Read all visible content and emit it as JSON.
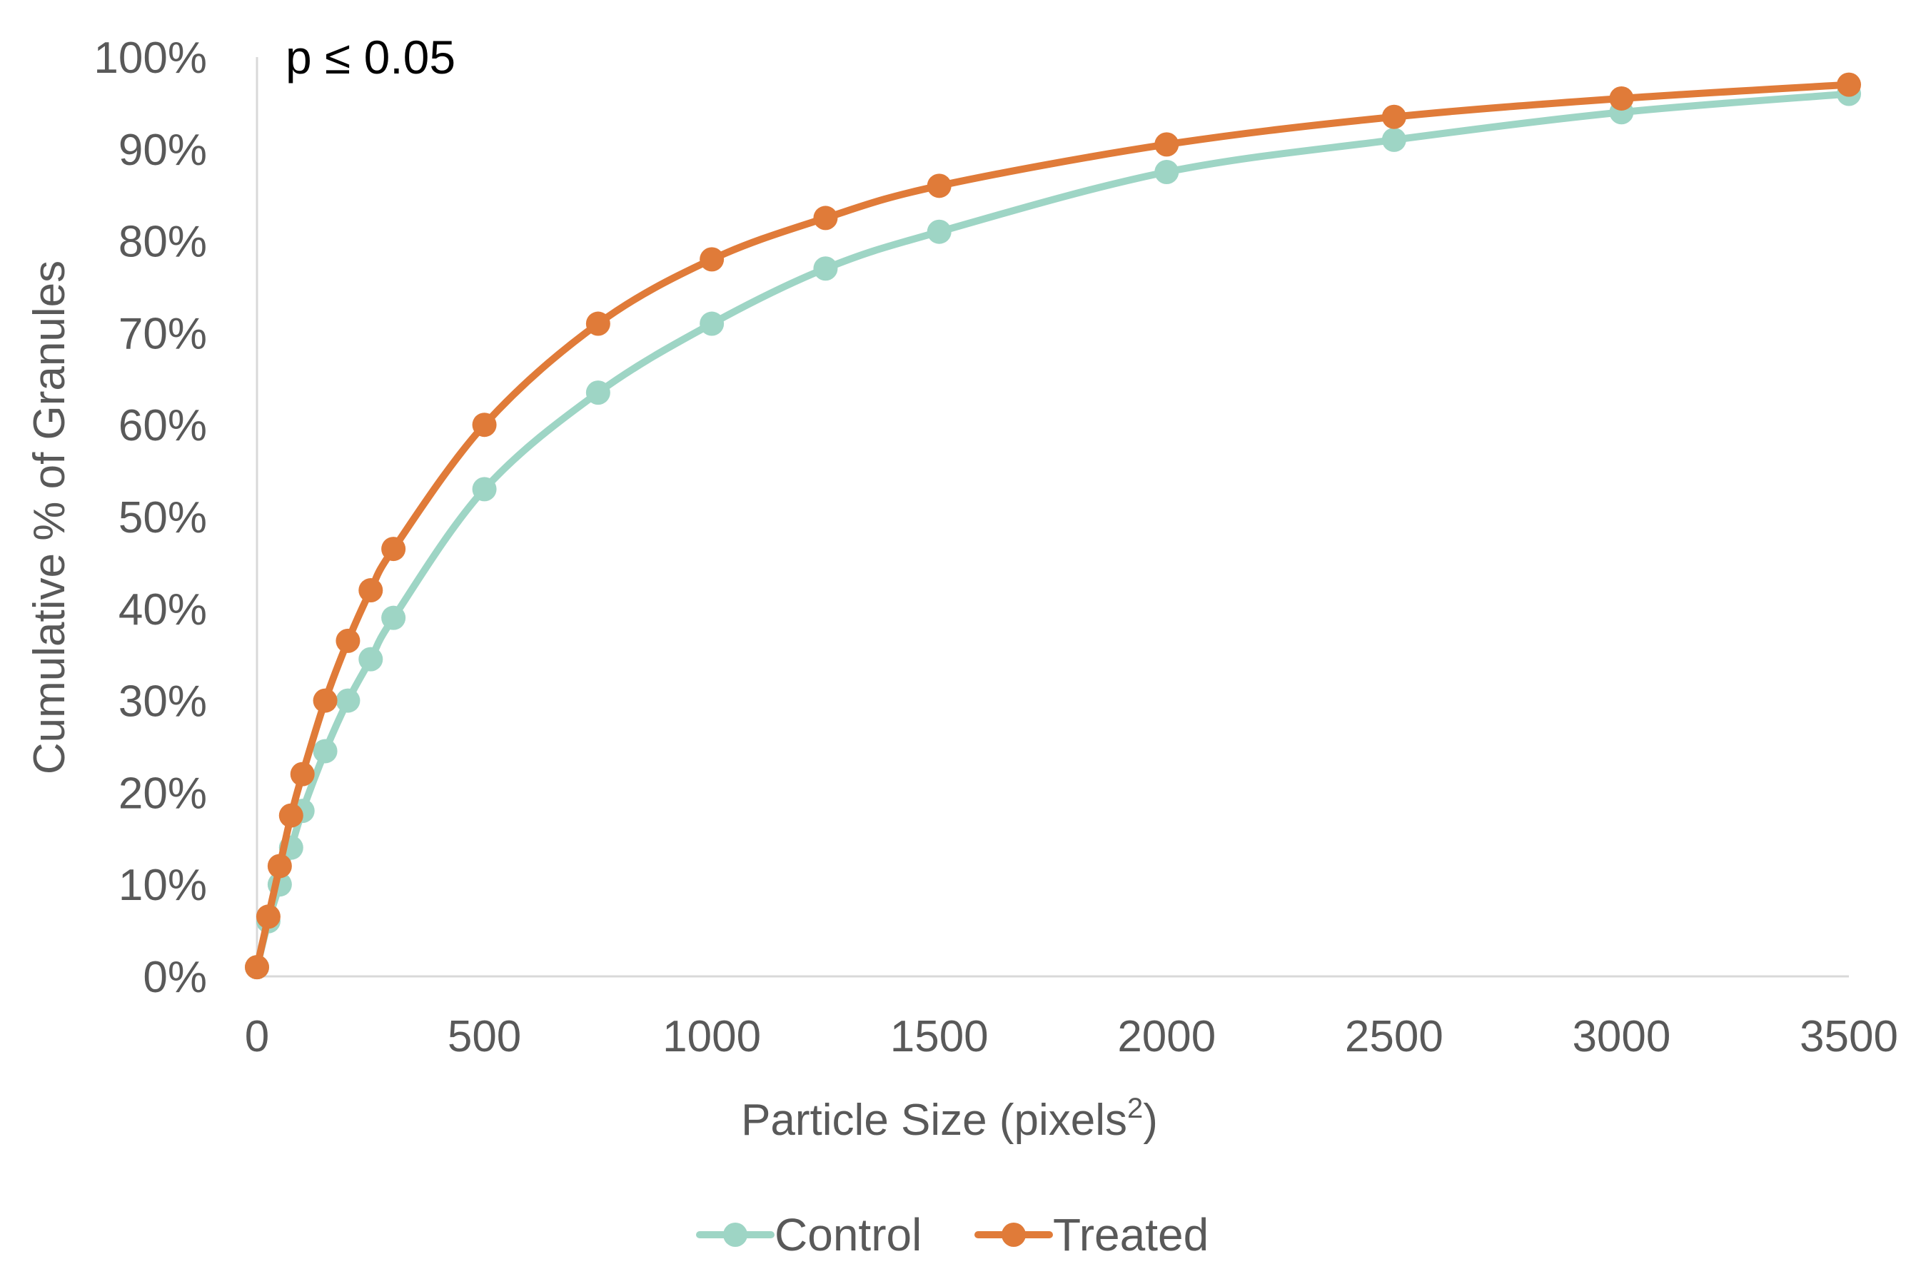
{
  "chart_data": {
    "type": "line",
    "annotation": "p ≤ 0.05",
    "xlabel": "Particle Size  (pixels",
    "xlabel_sup": "2",
    "xlabel_end": ")",
    "ylabel": "Cumulative % of Granules",
    "xlim": [
      0,
      3500
    ],
    "ylim": [
      0,
      100
    ],
    "x_ticks": [
      0,
      500,
      1000,
      1500,
      2000,
      2500,
      3000,
      3500
    ],
    "x_tick_labels": [
      "0",
      "500",
      "1000",
      "1500",
      "2000",
      "2500",
      "3000",
      "3500"
    ],
    "y_ticks": [
      0,
      10,
      20,
      30,
      40,
      50,
      60,
      70,
      80,
      90,
      100
    ],
    "y_tick_labels": [
      "0%",
      "10%",
      "20%",
      "30%",
      "40%",
      "50%",
      "60%",
      "70%",
      "80%",
      "90%",
      "100%"
    ],
    "grid": false,
    "legend_position": "bottom",
    "x": [
      0,
      25,
      50,
      75,
      100,
      150,
      200,
      250,
      300,
      500,
      750,
      1000,
      1250,
      1500,
      2000,
      2500,
      3000,
      3500
    ],
    "series": [
      {
        "name": "Control",
        "color": "#9ed5c5",
        "values": [
          1,
          6,
          10,
          14,
          18,
          24.5,
          30,
          34.5,
          39,
          53,
          63.5,
          71,
          77,
          81,
          87.5,
          91,
          94,
          96
        ]
      },
      {
        "name": "Treated",
        "color": "#e07b39",
        "values": [
          1,
          6.5,
          12,
          17.5,
          22,
          30,
          36.5,
          42,
          46.5,
          60,
          71,
          78,
          82.5,
          86,
          90.5,
          93.5,
          95.5,
          97
        ]
      }
    ]
  }
}
